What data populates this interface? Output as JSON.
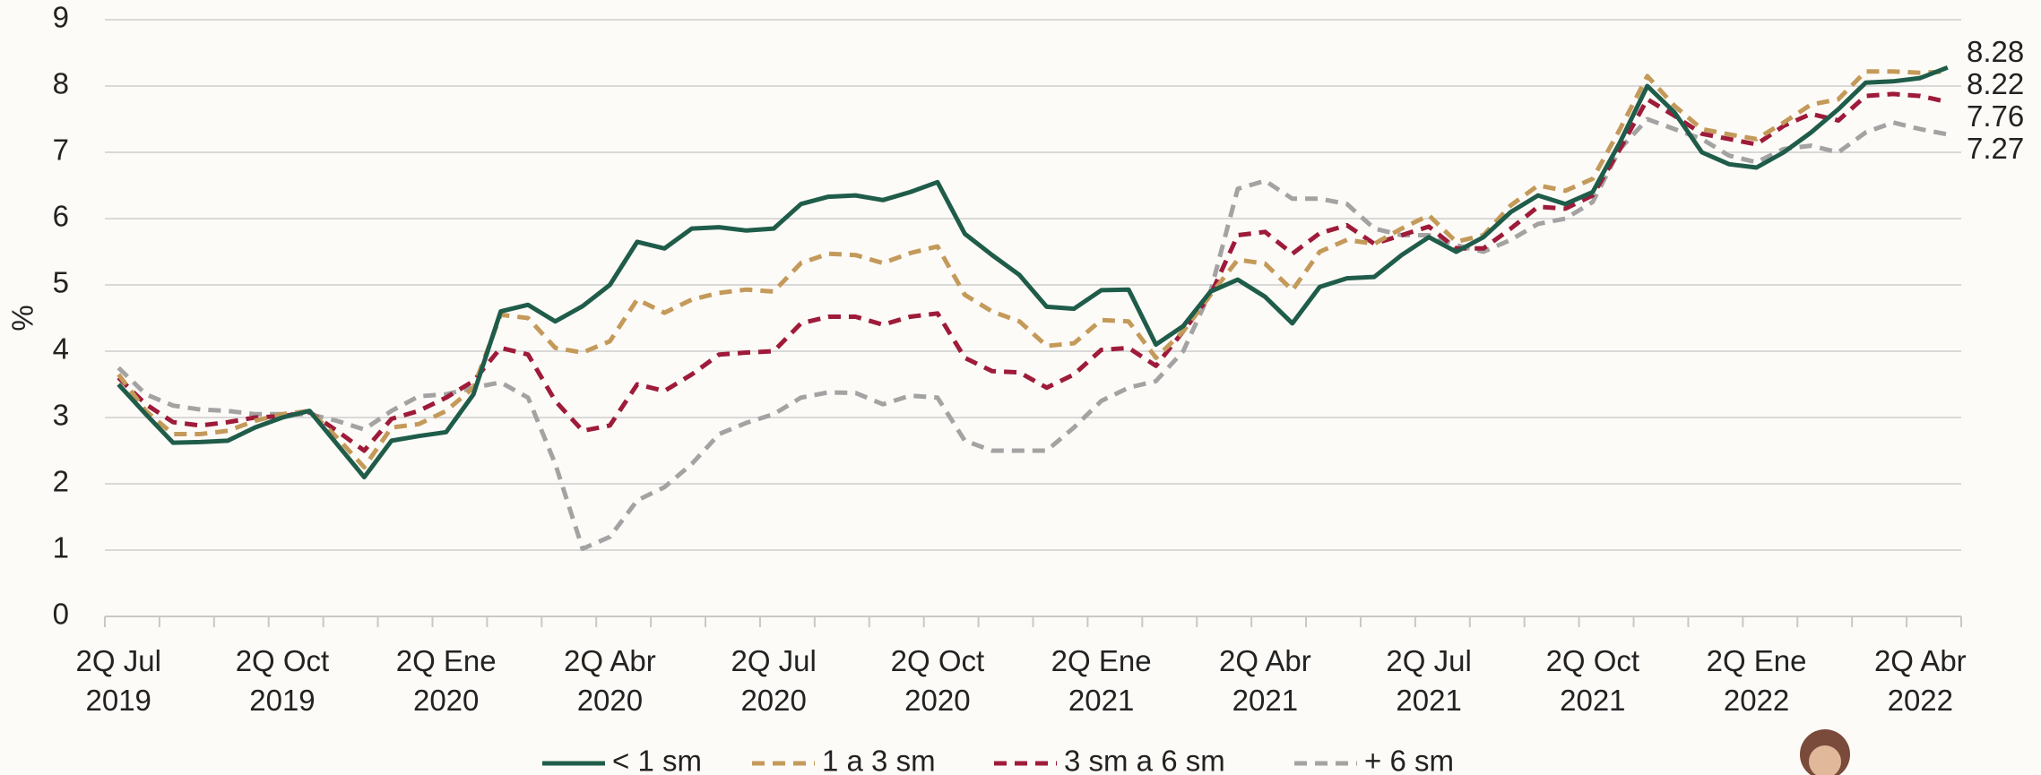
{
  "chart_data": {
    "type": "line",
    "y_label": "%",
    "categories": [
      "2Q Jul 2019",
      null,
      null,
      null,
      null,
      null,
      "2Q Oct 2019",
      null,
      null,
      null,
      null,
      null,
      "2Q Ene 2020",
      null,
      null,
      null,
      null,
      null,
      "2Q Abr 2020",
      null,
      null,
      null,
      null,
      null,
      "2Q Jul 2020",
      null,
      null,
      null,
      null,
      null,
      "2Q Oct 2020",
      null,
      null,
      null,
      null,
      null,
      "2Q Ene 2021",
      null,
      null,
      null,
      null,
      null,
      "2Q Abr 2021",
      null,
      null,
      null,
      null,
      null,
      "2Q Jul 2021",
      null,
      null,
      null,
      null,
      null,
      "2Q Oct 2021",
      null,
      null,
      null,
      null,
      null,
      "2Q Ene 2022",
      null,
      null,
      null,
      null,
      null,
      "2Q Abr 2022",
      null
    ],
    "ylim": [
      0,
      9
    ],
    "yticks": [
      0,
      1,
      2,
      3,
      4,
      5,
      6,
      7,
      8,
      9
    ],
    "grid": true,
    "legend": "bottom",
    "series": [
      {
        "name": "< 1 sm",
        "color": "#1f5c4a",
        "dashed": false,
        "values": [
          3.5,
          3.05,
          2.62,
          2.63,
          2.65,
          2.85,
          3.0,
          3.1,
          2.6,
          2.1,
          2.65,
          2.72,
          2.78,
          3.35,
          4.6,
          4.7,
          4.45,
          4.68,
          5.0,
          5.65,
          5.55,
          5.85,
          5.87,
          5.82,
          5.85,
          6.22,
          6.33,
          6.35,
          6.28,
          6.4,
          6.55,
          5.77,
          5.45,
          5.15,
          4.67,
          4.64,
          4.92,
          4.93,
          4.1,
          4.38,
          4.9,
          5.08,
          4.82,
          4.42,
          4.97,
          5.1,
          5.12,
          5.45,
          5.72,
          5.5,
          5.72,
          6.1,
          6.35,
          6.22,
          6.4,
          7.15,
          8.0,
          7.6,
          7.0,
          6.82,
          6.77,
          7.0,
          7.3,
          7.65,
          8.05,
          8.07,
          8.12,
          8.28
        ]
      },
      {
        "name": "1 a 3 sm",
        "color": "#c49a5a",
        "dashed": true,
        "values": [
          3.65,
          3.1,
          2.75,
          2.75,
          2.8,
          2.95,
          3.05,
          3.1,
          2.7,
          2.25,
          2.85,
          2.9,
          3.1,
          3.45,
          4.55,
          4.5,
          4.05,
          3.98,
          4.15,
          4.78,
          4.58,
          4.78,
          4.88,
          4.93,
          4.9,
          5.33,
          5.47,
          5.45,
          5.33,
          5.48,
          5.58,
          4.85,
          4.6,
          4.45,
          4.08,
          4.12,
          4.47,
          4.45,
          3.9,
          4.3,
          4.85,
          5.38,
          5.32,
          4.92,
          5.5,
          5.68,
          5.62,
          5.85,
          6.05,
          5.65,
          5.75,
          6.2,
          6.5,
          6.42,
          6.6,
          7.35,
          8.15,
          7.7,
          7.35,
          7.27,
          7.2,
          7.45,
          7.72,
          7.8,
          8.22,
          8.22,
          8.2,
          8.22
        ]
      },
      {
        "name": "3 sm a 6 sm",
        "color": "#9e1b3a",
        "dashed": true,
        "values": [
          3.6,
          3.2,
          2.93,
          2.88,
          2.93,
          3.0,
          3.02,
          3.08,
          2.8,
          2.5,
          2.98,
          3.1,
          3.3,
          3.55,
          4.05,
          3.95,
          3.25,
          2.8,
          2.88,
          3.5,
          3.4,
          3.65,
          3.95,
          3.98,
          4.0,
          4.42,
          4.52,
          4.52,
          4.4,
          4.52,
          4.57,
          3.9,
          3.7,
          3.68,
          3.45,
          3.65,
          4.02,
          4.05,
          3.78,
          4.3,
          4.85,
          5.75,
          5.8,
          5.47,
          5.78,
          5.9,
          5.62,
          5.75,
          5.88,
          5.55,
          5.55,
          5.85,
          6.18,
          6.15,
          6.35,
          7.05,
          7.8,
          7.55,
          7.28,
          7.2,
          7.12,
          7.4,
          7.58,
          7.48,
          7.85,
          7.88,
          7.85,
          7.76
        ]
      },
      {
        "name": "+ 6 sm",
        "color": "#a3a3a3",
        "dashed": true,
        "values": [
          3.75,
          3.35,
          3.18,
          3.12,
          3.1,
          3.05,
          3.05,
          3.05,
          2.95,
          2.82,
          3.1,
          3.32,
          3.35,
          3.45,
          3.53,
          3.3,
          2.3,
          1.02,
          1.2,
          1.75,
          1.95,
          2.3,
          2.75,
          2.92,
          3.05,
          3.3,
          3.38,
          3.37,
          3.2,
          3.33,
          3.3,
          2.65,
          2.5,
          2.5,
          2.5,
          2.85,
          3.25,
          3.45,
          3.55,
          4.0,
          4.9,
          6.45,
          6.57,
          6.3,
          6.3,
          6.22,
          5.85,
          5.75,
          5.75,
          5.6,
          5.5,
          5.68,
          5.92,
          6.0,
          6.25,
          7.05,
          7.5,
          7.35,
          7.2,
          6.95,
          6.85,
          7.05,
          7.1,
          7.0,
          7.3,
          7.45,
          7.35,
          7.27
        ]
      }
    ]
  }
}
